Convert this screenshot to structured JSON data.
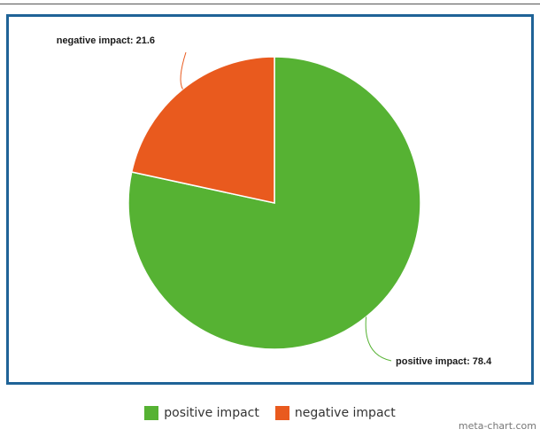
{
  "chart_data": {
    "type": "pie",
    "title": "",
    "slices": [
      {
        "label": "positive impact",
        "value": 78.4,
        "color": "#56b233",
        "data_label": "positive impact: 78.4"
      },
      {
        "label": "negative impact",
        "value": 21.6,
        "color": "#e95a1e",
        "data_label": "negative impact: 21.6"
      }
    ],
    "legend": {
      "placement": "bottom"
    }
  },
  "legend": {
    "items": [
      {
        "label": "positive impact",
        "color": "#56b233"
      },
      {
        "label": "negative impact",
        "color": "#e95a1e"
      }
    ]
  },
  "watermark": "meta-chart.com",
  "colors": {
    "frame_border": "#1f6397",
    "leader_line_positive": "#56b233",
    "leader_line_negative": "#e95a1e"
  }
}
